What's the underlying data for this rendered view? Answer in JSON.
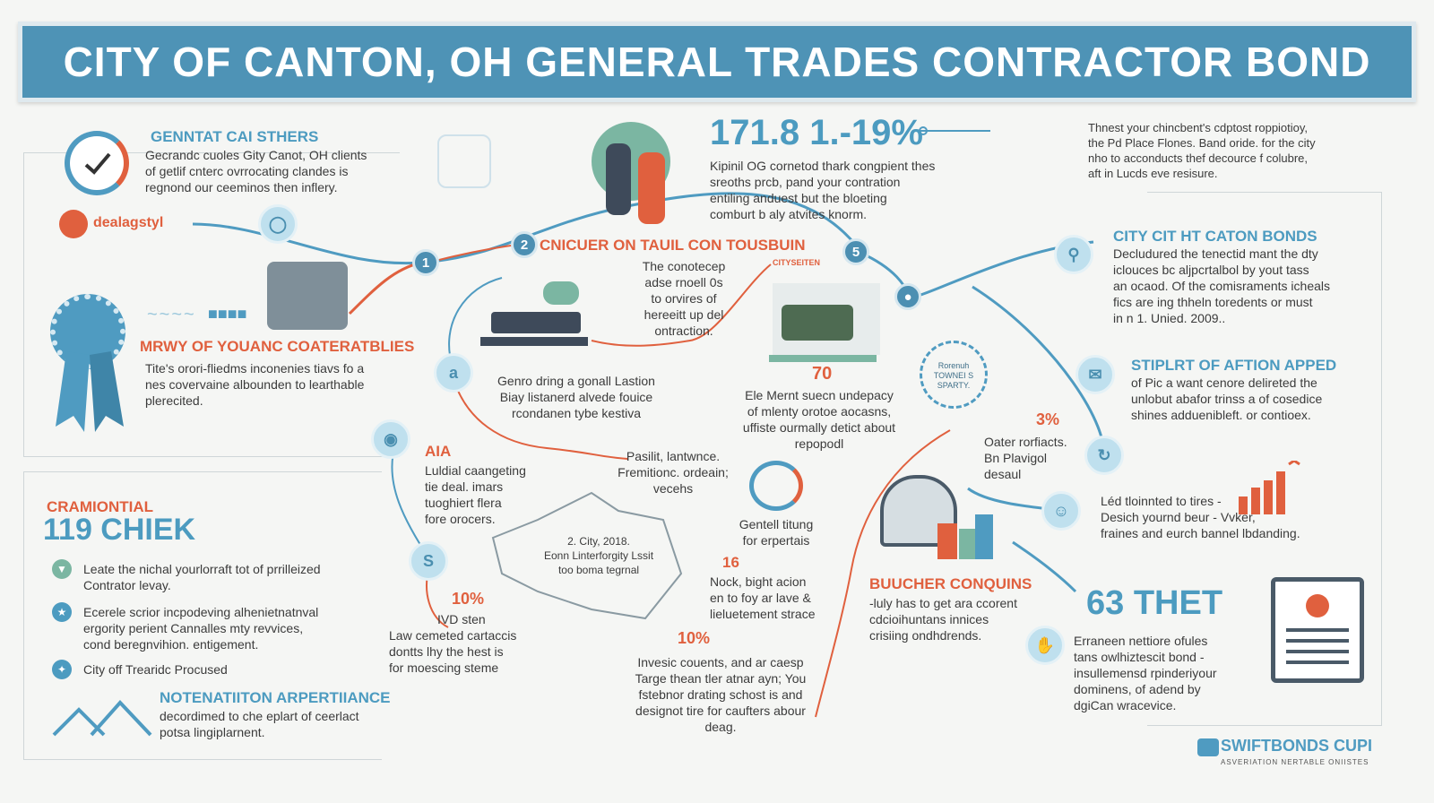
{
  "banner": {
    "title": "CITY OF CANTON, OH GENERAL TRADES CONTRACTOR BOND"
  },
  "top_left": {
    "heading": "GENNTAT CAI STHERS",
    "text": [
      "Gecrandc cuoles Gity Canot, OH clients",
      "of getlif cnterc ovrrocating clandes is",
      "regnond our ceeminos then inflery."
    ]
  },
  "logo_small": {
    "text": "dealagstyl"
  },
  "top_center": {
    "stat": "171.8 1.-19%",
    "text": [
      "Kipinil OG cornetod thark congpient thes",
      "sreoths prcb, pand your contration",
      "entiling anduest but the bloeting",
      "comburt b aly atvites knorm."
    ]
  },
  "top_right": {
    "text": [
      "Thnest your chincbent's cdptost roppiotioy,",
      "the Pd Place Flones. Band oride. for the city",
      "nho to acconducts thef decource f colubre,",
      "aft in Lucds eve resisure."
    ]
  },
  "step_badges": {
    "n1": "1",
    "n2": "2",
    "n3": "5"
  },
  "encounter": {
    "heading": "CNICUER ON TAUIL CON TOUSBUIN"
  },
  "center_text": [
    "The conotecep",
    "adse rnoell 0s",
    "to orvires of",
    "hereeitt up del",
    "ontraction."
  ],
  "left_mid": {
    "heading": "MRWY OF YOUANC COATERATBLIES",
    "text": [
      "Tite's orori-fliedms inconenies tiavs fo a",
      "nes covervaine albounden to learthable",
      "plerecited."
    ]
  },
  "genro": {
    "text": [
      "Genro dring a gonall Lastion",
      "Biay listanerd alvede fouice",
      "rcondanen tybe kestiva"
    ]
  },
  "city_sign": "CITYSEITEN",
  "mid_number": "70",
  "elet": {
    "text": [
      "Ele Mernt suecn undepacy",
      "of mlenty orotoe aocasns,",
      "uffiste ourmally detict about",
      "repopodl"
    ]
  },
  "right_top": {
    "heading": "CITY CIT HT CATON BONDS",
    "text": [
      "Decludured the tenectid mant the dty",
      "iclouces bc aljpcrtalbol by yout tass",
      "an ocaod. Of the comisraments icheals",
      "fics are ing thheln toredents or must",
      "in n 1. Unied. 2009.."
    ]
  },
  "stamp": [
    "Rorenuh",
    "TOWNEI S",
    "SPARTY."
  ],
  "right_mid": {
    "heading": "STIPLRT OF AFTION APPED",
    "text": [
      "of Pic a want cenore delireted the",
      "unlobut abafor trinss a of cosedice",
      "shines adduenibleft. or contioex."
    ]
  },
  "pct_small": "3%",
  "oater": {
    "text": [
      "Oater rorfiacts.",
      "Bn Plavigol",
      "desaul"
    ]
  },
  "left_bottom": {
    "heading_small": "CRAMIONTIAL",
    "heading_big": "119 CHIEK",
    "bullets": [
      [
        "Leate the nichal yourlorraft tot of prrilleized",
        "Contrator levay."
      ],
      [
        "Ecerele scrior incpodeving alhenietnatnval",
        "ergority perient Cannalles mty revvices,",
        "cond beregnvihion. entigement."
      ],
      [
        "City off Trearidc Procused"
      ]
    ],
    "note_heading": "NOTENATIITON ARPERTIIANCE",
    "note_text": [
      "decordimed to che eplart of ceerlact",
      "potsa lingiplarnent."
    ]
  },
  "step_labels": {
    "s1": "a",
    "s2": "S"
  },
  "lud": {
    "num": "AIA",
    "text": [
      "Luldial caangeting",
      "tie deal. imars",
      "tuoghiert flera",
      "fore orocers."
    ]
  },
  "pasilit": {
    "text": [
      "Pasilit, lantwnce.",
      "Fremitionc. ordeain;",
      "vecehs"
    ]
  },
  "map": {
    "text": [
      "2. City, 2018.",
      "Eonn Linterforgity Lssit",
      "too boma tegrnal"
    ]
  },
  "pct10a": "10%",
  "ivd": {
    "text": [
      "IVD sten",
      "Law cemeted cartaccis",
      "dontts lhy the hest is",
      "for moescing steme"
    ]
  },
  "gentel": {
    "text": [
      "Gentell titung",
      "for erpertais"
    ]
  },
  "nock": {
    "num": "16",
    "text": [
      "Nock, bight acion",
      "en to foy ar lave &",
      "lieluetement strace"
    ]
  },
  "pct10b": "10%",
  "invesic": {
    "text": [
      "Invesic couents, and ar caesp",
      "Targe thean tler atnar ayn; You",
      "fstebnor drating schost is and",
      "designot tire for caufters abour",
      "deag."
    ]
  },
  "bucher": {
    "heading": "BUUCHER CONQUINS",
    "text": [
      "-luly has to get ara ccorent",
      "cdcioihuntans innices",
      "crisiing ondhdrends."
    ]
  },
  "led": {
    "text": [
      "Léd tloinnted to tires -",
      "Desich yournd beur - Vvker,",
      "fraines and eurch bannel lbdanding."
    ]
  },
  "stat63": {
    "heading": "63 THET",
    "text": [
      "Erraneen nettiore ofules",
      "tans owlhiztescit bond -",
      "insullemensd rpinderiyour",
      "dominens, of adend by",
      "dgiCan wracevice."
    ]
  },
  "brand": {
    "name": "SWIFTBONDS CUPI",
    "tagline": "ASVERIATION NERTABLE ONIISTES"
  },
  "colors": {
    "blue": "#4e93b6",
    "orange": "#e0603e",
    "light_blue": "#bfe0ee"
  }
}
